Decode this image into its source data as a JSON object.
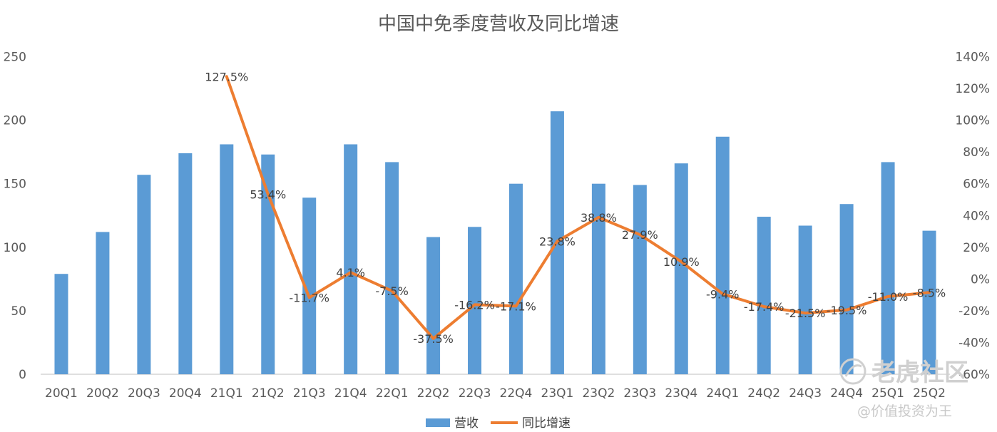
{
  "chart_data": {
    "type": "bar",
    "title": "中国中免季度营收及同比增速",
    "categories": [
      "20Q1",
      "20Q2",
      "20Q3",
      "20Q4",
      "21Q1",
      "21Q2",
      "21Q3",
      "21Q4",
      "22Q1",
      "22Q2",
      "22Q3",
      "22Q4",
      "23Q1",
      "23Q2",
      "23Q3",
      "23Q4",
      "24Q1",
      "24Q2",
      "24Q3",
      "24Q4",
      "25Q1",
      "25Q2"
    ],
    "series": [
      {
        "name": "营收",
        "type": "bar",
        "axis": "left",
        "color": "#5b9bd5",
        "values": [
          79,
          112,
          157,
          174,
          181,
          173,
          139,
          181,
          167,
          108,
          116,
          150,
          207,
          150,
          149,
          166,
          187,
          124,
          117,
          134,
          167,
          113
        ]
      },
      {
        "name": "同比增速",
        "type": "line",
        "axis": "right",
        "color": "#ed7d31",
        "values": [
          null,
          null,
          null,
          null,
          127.5,
          53.4,
          -11.7,
          4.1,
          -7.5,
          -37.5,
          -16.2,
          -17.1,
          23.8,
          38.8,
          27.9,
          10.9,
          -9.4,
          -17.4,
          -21.5,
          -19.5,
          -11.0,
          -8.5
        ],
        "labels": [
          null,
          null,
          null,
          null,
          "127.5%",
          "53.4%",
          "-11.7%",
          "4.1%",
          "-7.5%",
          "-37.5%",
          "-16.2%",
          "-17.1%",
          "23.8%",
          "38.8%",
          "27.9%",
          "10.9%",
          "-9.4%",
          "-17.4%",
          "-21.5%",
          "-19.5%",
          "-11.0%",
          "-8.5%"
        ]
      }
    ],
    "y_left": {
      "min": 0,
      "max": 250,
      "ticks": [
        "0",
        "50",
        "100",
        "150",
        "200",
        "250"
      ]
    },
    "y_right": {
      "min": -60,
      "max": 140,
      "ticks": [
        "-60%",
        "-40%",
        "-20%",
        "0%",
        "20%",
        "40%",
        "60%",
        "80%",
        "100%",
        "120%",
        "140%"
      ]
    },
    "grid": false,
    "legend": "bottom"
  },
  "watermark": {
    "brand": "老虎社区",
    "author": "@价值投资为王"
  }
}
